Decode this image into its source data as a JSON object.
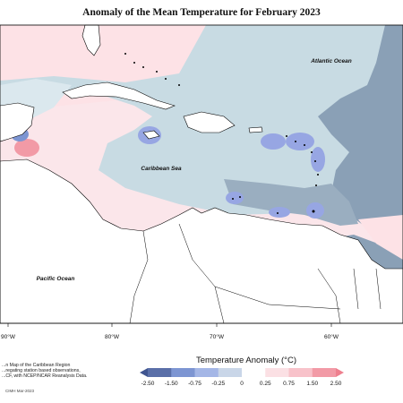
{
  "title": "Anomaly of the Mean Temperature for February 2023",
  "labels": {
    "atlantic": "Atlantic Ocean",
    "caribbean": "Caribbean Sea",
    "pacific": "Pacific Ocean"
  },
  "longitude_ticks": [
    "90°W",
    "80°W",
    "70°W",
    "60°W"
  ],
  "notes": [
    "...n Map of the Caribbean Region",
    "...regating station based observations,",
    "...CF, with NCEP/NCAR Reanalysis Data."
  ],
  "credit": "CIMH Mar-2023",
  "legend": {
    "title": "Temperature Anomaly (°C)",
    "ticks": [
      "-2.50",
      "-1.50",
      "-0.75",
      "-0.25",
      "0",
      "0.25",
      "0.75",
      "1.50",
      "2.50"
    ],
    "colors": [
      "#5a6fa8",
      "#7d95d2",
      "#a4b6e6",
      "#c9d6e8",
      "#ffffff",
      "#fbe0e4",
      "#f8c2ca",
      "#f29aa6"
    ],
    "extend_low_color": "#3f5590",
    "extend_high_color": "#ee7f8e"
  },
  "colors": {
    "cool_light": "#c8dbe3",
    "cool_mid": "#8aa0b6",
    "cool_blue": "#97a6e3",
    "warm_light": "#fde2e6",
    "land": "#ffffff",
    "coast": "#000000"
  }
}
